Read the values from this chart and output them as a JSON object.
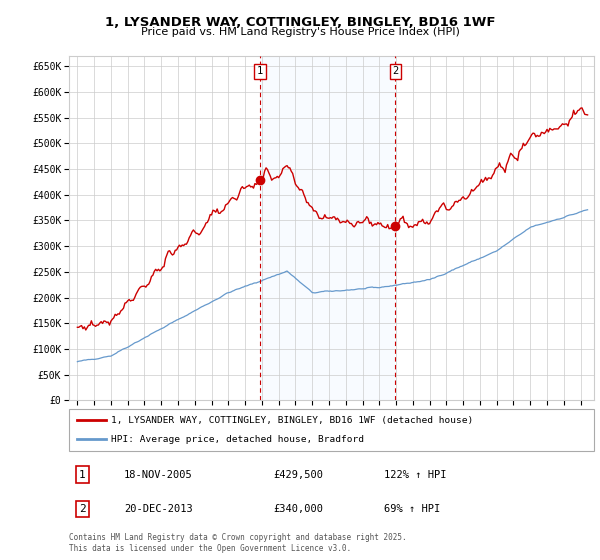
{
  "title1": "1, LYSANDER WAY, COTTINGLEY, BINGLEY, BD16 1WF",
  "title2": "Price paid vs. HM Land Registry's House Price Index (HPI)",
  "legend_line1": "1, LYSANDER WAY, COTTINGLEY, BINGLEY, BD16 1WF (detached house)",
  "legend_line2": "HPI: Average price, detached house, Bradford",
  "transaction1_date": "18-NOV-2005",
  "transaction1_price": "£429,500",
  "transaction1_hpi": "122% ↑ HPI",
  "transaction2_date": "20-DEC-2013",
  "transaction2_price": "£340,000",
  "transaction2_hpi": "69% ↑ HPI",
  "footnote": "Contains HM Land Registry data © Crown copyright and database right 2025.\nThis data is licensed under the Open Government Licence v3.0.",
  "red_color": "#cc0000",
  "blue_color": "#6699cc",
  "bg_shading_color": "#ddeeff",
  "grid_color": "#cccccc",
  "ylim": [
    0,
    670000
  ],
  "yticks": [
    0,
    50000,
    100000,
    150000,
    200000,
    250000,
    300000,
    350000,
    400000,
    450000,
    500000,
    550000,
    600000,
    650000
  ],
  "xlim_left": 1994.5,
  "xlim_right": 2025.8,
  "transaction1_x": 2005.88,
  "transaction1_y": 429500,
  "transaction2_x": 2013.96,
  "transaction2_y": 340000
}
